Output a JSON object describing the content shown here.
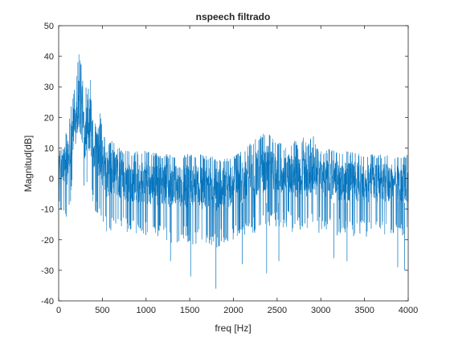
{
  "chart_data": {
    "type": "line",
    "title": "nspeech filtrado",
    "xlabel": "freq [Hz]",
    "ylabel": "Magnitud[dB]",
    "xlim": [
      0,
      4000
    ],
    "ylim": [
      -40,
      50
    ],
    "xticks": [
      0,
      500,
      1000,
      1500,
      2000,
      2500,
      3000,
      3500,
      4000
    ],
    "yticks": [
      -40,
      -30,
      -20,
      -10,
      0,
      10,
      20,
      30,
      40,
      50
    ],
    "grid": false,
    "legend": "none",
    "series_color": "#0072BD",
    "envelope": {
      "x": [
        0,
        50,
        100,
        150,
        200,
        230,
        260,
        300,
        330,
        380,
        420,
        470,
        520,
        580,
        620,
        700,
        800,
        1000,
        1200,
        1400,
        1600,
        1800,
        1950,
        2100,
        2200,
        2300,
        2400,
        2450,
        2500,
        2550,
        2600,
        2650,
        2700,
        2750,
        2800,
        2850,
        2900,
        2950,
        3000,
        3100,
        3200,
        3300,
        3400,
        3500,
        3600,
        3700,
        3800,
        3900,
        4000
      ],
      "upper": [
        11,
        14,
        16,
        25,
        33,
        41,
        38,
        24,
        37,
        30,
        22,
        23,
        14,
        12,
        13,
        10,
        9,
        9,
        8,
        8,
        8,
        7,
        7,
        9,
        12,
        14,
        16,
        13,
        12,
        12,
        14,
        11,
        13,
        10,
        14,
        11,
        16,
        11,
        9,
        10,
        9,
        9,
        9,
        8,
        8,
        8,
        8,
        8,
        8
      ],
      "lower": [
        -2,
        -8,
        -8,
        0,
        5,
        6,
        4,
        0,
        2,
        -3,
        -6,
        -8,
        -10,
        -15,
        -10,
        -12,
        -13,
        -14,
        -15,
        -15,
        -16,
        -17,
        -15,
        -13,
        -12,
        -12,
        -10,
        -10,
        -10,
        -11,
        -10,
        -11,
        -12,
        -12,
        -11,
        -12,
        -11,
        -12,
        -12,
        -12,
        -13,
        -13,
        -13,
        -13,
        -13,
        -13,
        -13,
        -13,
        -13
      ]
    },
    "extreme_dips": [
      {
        "x": 1280,
        "y": -27
      },
      {
        "x": 1510,
        "y": -32
      },
      {
        "x": 1800,
        "y": -36
      },
      {
        "x": 2100,
        "y": -28
      },
      {
        "x": 2380,
        "y": -31
      },
      {
        "x": 2520,
        "y": -27
      },
      {
        "x": 3150,
        "y": -26
      },
      {
        "x": 3300,
        "y": -27
      },
      {
        "x": 3880,
        "y": -29
      },
      {
        "x": 3960,
        "y": -30
      }
    ]
  }
}
